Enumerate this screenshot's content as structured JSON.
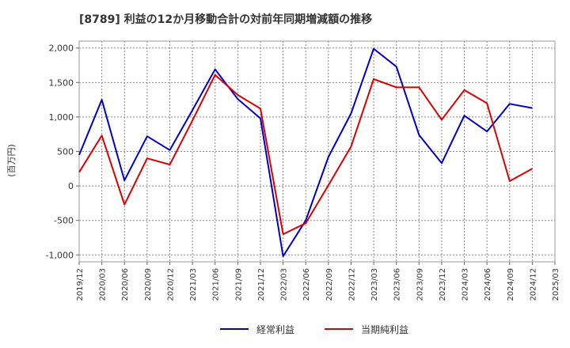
{
  "chart_data": {
    "type": "line",
    "title": "[8789]  利益の12か月移動合計の対前年同期増減額の推移",
    "ylabel": "(百万円)",
    "xlabel": "",
    "ylim": [
      -1100,
      2100
    ],
    "yticks": [
      2000,
      1500,
      1000,
      500,
      0,
      -500,
      -1000
    ],
    "ytick_labels": [
      "2,000",
      "1,500",
      "1,000",
      "500",
      "0",
      "-500",
      "-1,000"
    ],
    "categories": [
      "2019/12",
      "2020/03",
      "2020/06",
      "2020/09",
      "2020/12",
      "2021/03",
      "2021/06",
      "2021/09",
      "2021/12",
      "2022/03",
      "2022/06",
      "2022/09",
      "2022/12",
      "2023/03",
      "2023/06",
      "2023/09",
      "2023/12",
      "2024/03",
      "2024/06",
      "2024/09",
      "2024/12",
      "2025/03"
    ],
    "series": [
      {
        "name": "経常利益",
        "color": "#0000cc",
        "values": [
          450,
          1250,
          80,
          720,
          520,
          1100,
          1690,
          1260,
          980,
          -1020,
          -500,
          420,
          1050,
          1990,
          1730,
          740,
          330,
          1020,
          790,
          1190,
          1130,
          null
        ]
      },
      {
        "name": "当期純利益",
        "color": "#dd0000",
        "values": [
          200,
          730,
          -270,
          400,
          310,
          950,
          1610,
          1320,
          1120,
          -700,
          -540,
          10,
          570,
          1550,
          1430,
          1430,
          960,
          1390,
          1200,
          70,
          250,
          null
        ]
      }
    ],
    "grid": true,
    "legend_position": "bottom-center"
  }
}
